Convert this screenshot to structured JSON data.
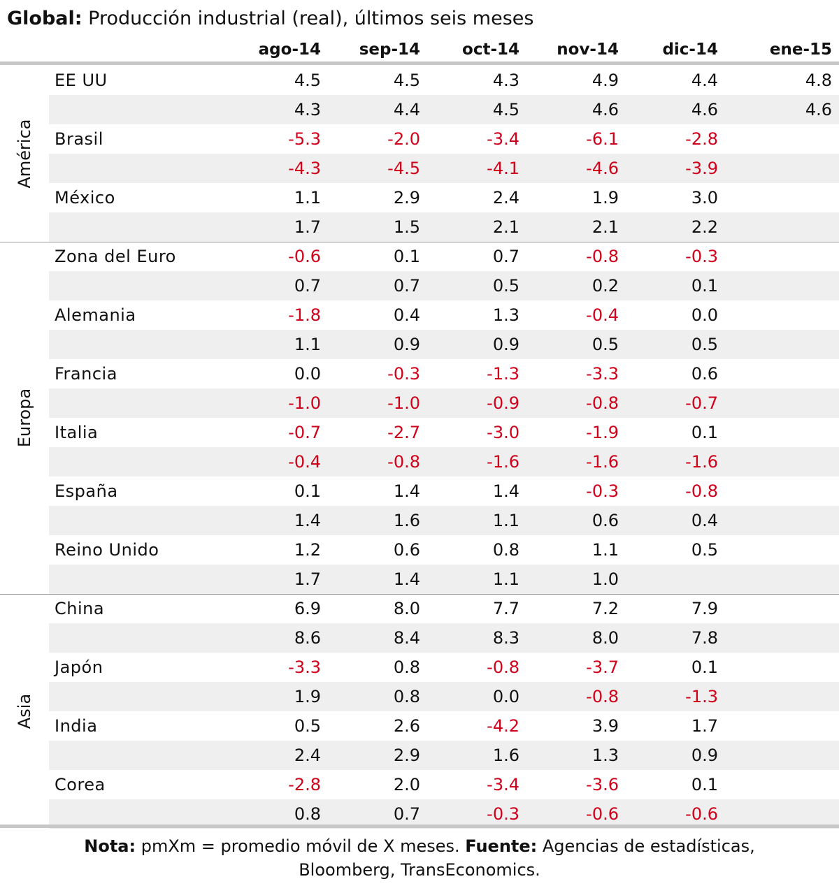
{
  "title": {
    "bold": "Global:",
    "text": " Producción industrial (real), últimos seis meses"
  },
  "columns": [
    "ago-14",
    "sep-14",
    "oct-14",
    "nov-14",
    "dic-14",
    "ene-15"
  ],
  "regions": [
    {
      "name": "América",
      "rows": [
        {
          "country": "EE UU",
          "values": [
            "4.5",
            "4.5",
            "4.3",
            "4.9",
            "4.4",
            "4.8"
          ]
        },
        {
          "country": "",
          "values": [
            "4.3",
            "4.4",
            "4.5",
            "4.6",
            "4.6",
            "4.6"
          ]
        },
        {
          "country": "Brasil",
          "values": [
            "-5.3",
            "-2.0",
            "-3.4",
            "-6.1",
            "-2.8",
            ""
          ]
        },
        {
          "country": "",
          "values": [
            "-4.3",
            "-4.5",
            "-4.1",
            "-4.6",
            "-3.9",
            ""
          ]
        },
        {
          "country": "México",
          "values": [
            "1.1",
            "2.9",
            "2.4",
            "1.9",
            "3.0",
            ""
          ]
        },
        {
          "country": "",
          "values": [
            "1.7",
            "1.5",
            "2.1",
            "2.1",
            "2.2",
            ""
          ]
        }
      ]
    },
    {
      "name": "Europa",
      "rows": [
        {
          "country": "Zona del Euro",
          "values": [
            "-0.6",
            "0.1",
            "0.7",
            "-0.8",
            "-0.3",
            ""
          ]
        },
        {
          "country": "",
          "values": [
            "0.7",
            "0.7",
            "0.5",
            "0.2",
            "0.1",
            ""
          ]
        },
        {
          "country": "Alemania",
          "values": [
            "-1.8",
            "0.4",
            "1.3",
            "-0.4",
            "0.0",
            ""
          ]
        },
        {
          "country": "",
          "values": [
            "1.1",
            "0.9",
            "0.9",
            "0.5",
            "0.5",
            ""
          ]
        },
        {
          "country": "Francia",
          "values": [
            "0.0",
            "-0.3",
            "-1.3",
            "-3.3",
            "0.6",
            ""
          ]
        },
        {
          "country": "",
          "values": [
            "-1.0",
            "-1.0",
            "-0.9",
            "-0.8",
            "-0.7",
            ""
          ]
        },
        {
          "country": "Italia",
          "values": [
            "-0.7",
            "-2.7",
            "-3.0",
            "-1.9",
            "0.1",
            ""
          ]
        },
        {
          "country": "",
          "values": [
            "-0.4",
            "-0.8",
            "-1.6",
            "-1.6",
            "-1.6",
            ""
          ]
        },
        {
          "country": "España",
          "values": [
            "0.1",
            "1.4",
            "1.4",
            "-0.3",
            "-0.8",
            ""
          ]
        },
        {
          "country": "",
          "values": [
            "1.4",
            "1.6",
            "1.1",
            "0.6",
            "0.4",
            ""
          ]
        },
        {
          "country": "Reino Unido",
          "values": [
            "1.2",
            "0.6",
            "0.8",
            "1.1",
            "0.5",
            ""
          ]
        },
        {
          "country": "",
          "values": [
            "1.7",
            "1.4",
            "1.1",
            "1.0",
            "",
            ""
          ]
        }
      ]
    },
    {
      "name": "Asia",
      "rows": [
        {
          "country": "China",
          "values": [
            "6.9",
            "8.0",
            "7.7",
            "7.2",
            "7.9",
            ""
          ]
        },
        {
          "country": "",
          "values": [
            "8.6",
            "8.4",
            "8.3",
            "8.0",
            "7.8",
            ""
          ]
        },
        {
          "country": "Japón",
          "values": [
            "-3.3",
            "0.8",
            "-0.8",
            "-3.7",
            "0.1",
            ""
          ]
        },
        {
          "country": "",
          "values": [
            "1.9",
            "0.8",
            "0.0",
            "-0.8",
            "-1.3",
            ""
          ]
        },
        {
          "country": "India",
          "values": [
            "0.5",
            "2.6",
            "-4.2",
            "3.9",
            "1.7",
            ""
          ]
        },
        {
          "country": "",
          "values": [
            "2.4",
            "2.9",
            "1.6",
            "1.3",
            "0.9",
            ""
          ]
        },
        {
          "country": "Corea",
          "values": [
            "-2.8",
            "2.0",
            "-3.4",
            "-3.6",
            "0.1",
            ""
          ]
        },
        {
          "country": "",
          "values": [
            "0.8",
            "0.7",
            "-0.3",
            "-0.6",
            "-0.6",
            ""
          ]
        }
      ]
    }
  ],
  "footer": {
    "note_label": "Nota:",
    "note_text": " pmXm = promedio móvil de X meses. ",
    "source_label": "Fuente:",
    "source_text": " Agencias de estadísticas,",
    "source_text_2": "Bloomberg,  TransEconomics."
  },
  "colors": {
    "negative": "#d0021b",
    "shade": "#efefef",
    "rule": "#c7c7c7"
  }
}
